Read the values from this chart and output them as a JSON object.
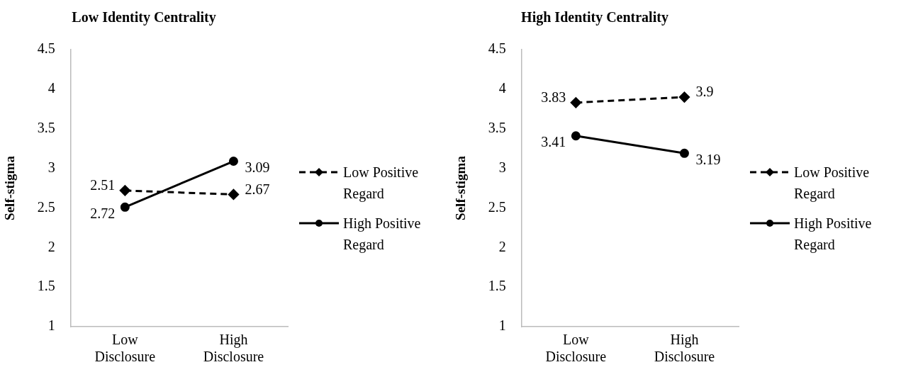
{
  "chart_data": [
    {
      "type": "line",
      "title": "Low Identity Centrality",
      "ylabel": "Self-stigma",
      "categories": [
        "Low Disclosure",
        "High Disclosure"
      ],
      "ylim": [
        1,
        4.5
      ],
      "yticks": [
        1,
        1.5,
        2,
        2.5,
        3,
        3.5,
        4,
        4.5
      ],
      "grid": false,
      "legend": "right",
      "series": [
        {
          "name": "Low Positive Regard",
          "color": "#000000",
          "values": [
            2.72,
            2.67
          ],
          "marker": "diamond",
          "line_style": "dashed"
        },
        {
          "name": "High Positive Regard",
          "color": "#000000",
          "values": [
            2.51,
            3.09
          ],
          "marker": "circle",
          "line_style": "solid"
        }
      ],
      "annotations": [
        "2.51",
        "2.67",
        "2.72",
        "3.09"
      ]
    },
    {
      "type": "line",
      "title": "High Identity Centrality",
      "ylabel": "Self-stigma",
      "categories": [
        "Low Disclosure",
        "High Disclosure"
      ],
      "ylim": [
        1,
        4.5
      ],
      "yticks": [
        1,
        1.5,
        2,
        2.5,
        3,
        3.5,
        4,
        4.5
      ],
      "grid": false,
      "legend": "right",
      "series": [
        {
          "name": "Low Positive Regard",
          "color": "#000000",
          "values": [
            3.83,
            3.9
          ],
          "marker": "diamond",
          "line_style": "dashed"
        },
        {
          "name": "High Positive Regard",
          "color": "#000000",
          "values": [
            3.41,
            3.19
          ],
          "marker": "circle",
          "line_style": "solid"
        }
      ],
      "annotations": [
        "3.83",
        "3.9",
        "3.41",
        "3.19"
      ]
    }
  ]
}
